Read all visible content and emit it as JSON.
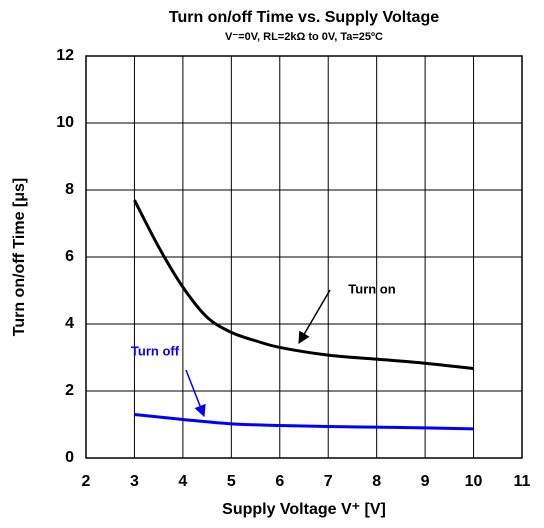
{
  "chart_data": {
    "type": "line",
    "title": "Turn on/off Time vs. Supply Voltage",
    "subtitle": "V⁻=0V, RL=2kΩ to 0V, Ta=25ºC",
    "x_label": "Supply Voltage V⁺ [V]",
    "y_label": "Turn on/off Time [μs]",
    "series": [
      {
        "name": "Turn on",
        "color": "#000000",
        "x": [
          3,
          3.5,
          4,
          4.5,
          5,
          5.5,
          6,
          7,
          8,
          9,
          10
        ],
        "values": [
          7.7,
          6.3,
          5.1,
          4.2,
          3.75,
          3.5,
          3.3,
          3.07,
          2.95,
          2.83,
          2.67
        ]
      },
      {
        "name": "Turn off",
        "color": "#0000ff",
        "x": [
          3,
          4,
          5,
          6,
          7,
          8,
          9,
          10
        ],
        "values": [
          1.3,
          1.15,
          1.02,
          0.97,
          0.94,
          0.92,
          0.9,
          0.87
        ]
      }
    ],
    "xlim": [
      2,
      11
    ],
    "xticks": [
      2,
      3,
      4,
      5,
      6,
      7,
      8,
      9,
      10,
      11
    ],
    "ylim": [
      0,
      12
    ],
    "yticks": [
      0,
      2,
      4,
      6,
      8,
      10,
      12
    ],
    "grid": true
  }
}
